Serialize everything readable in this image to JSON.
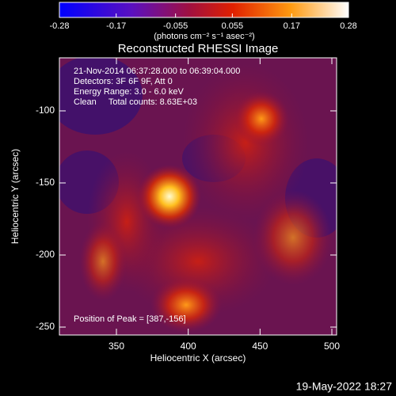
{
  "chart_data": {
    "type": "heatmap",
    "title": "Reconstructed RHESSI Image",
    "xlabel": "Heliocentric X (arcsec)",
    "ylabel": "Heliocentric Y (arcsec)",
    "xlim": [
      310.3,
      503.3
    ],
    "xticks": [
      350,
      400,
      450,
      500
    ],
    "ylim": [
      -255.5,
      -63.2
    ],
    "yticks": [
      -100,
      -150,
      -200,
      -250
    ],
    "colorbar": {
      "label": "(photons cm⁻² s⁻¹ asec⁻²)",
      "lim": [
        -0.28,
        0.28
      ],
      "ticks": [
        -0.28,
        -0.17,
        -0.055,
        0.055,
        0.17,
        0.28
      ]
    },
    "annotations": [
      "21-Nov-2014 06:37:28.000 to 06:39:04.000",
      "Detectors: 3F 6F 9F, Att 0",
      "Energy Range: 3.0 - 6.0 keV",
      "Clean     Total counts: 8.63E+03"
    ],
    "peak_label": "Position of Peak = [387,-156]",
    "footer": "19-May-2022 18:27"
  }
}
